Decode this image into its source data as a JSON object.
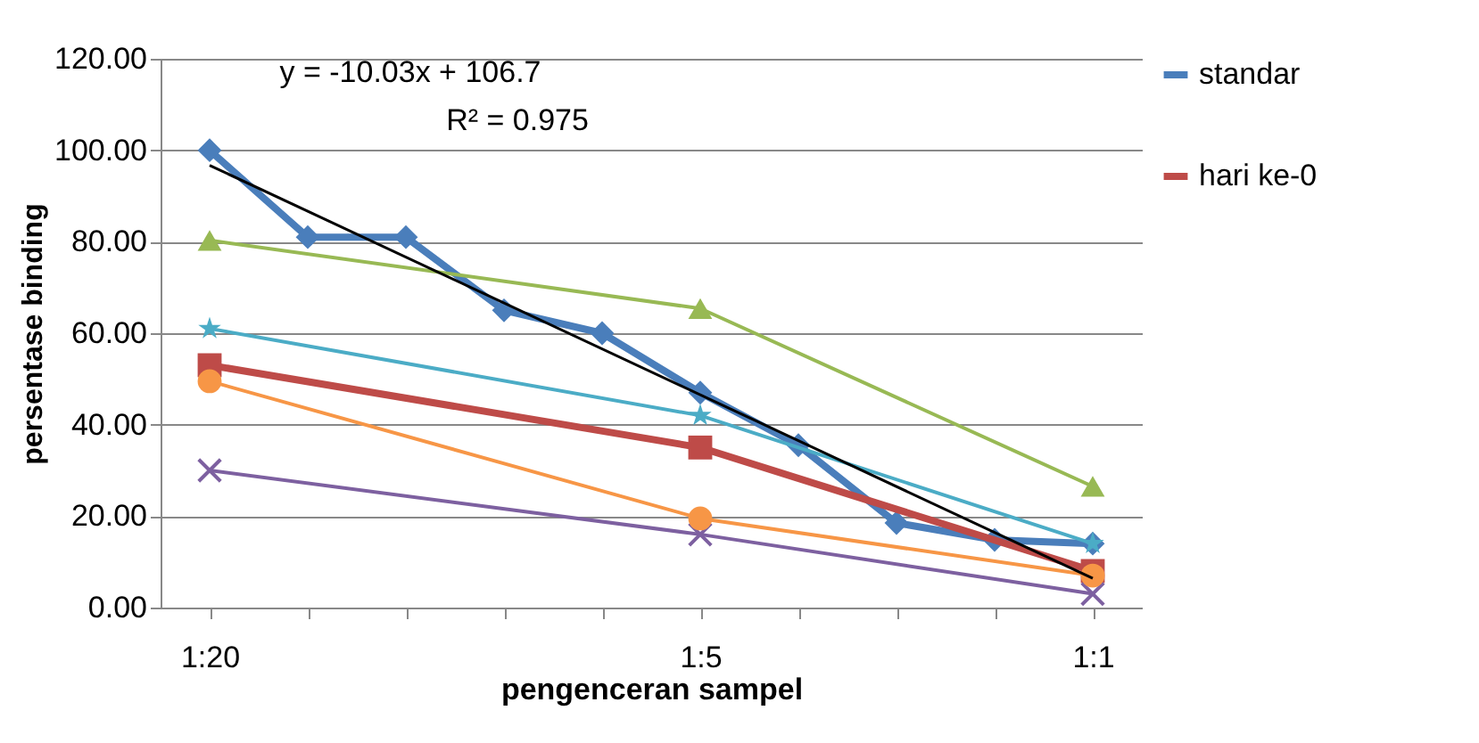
{
  "chart_data": {
    "type": "line",
    "xlabel": "pengenceran sampel",
    "ylabel": "persentase binding",
    "categories": [
      "1:20",
      null,
      null,
      null,
      null,
      "1:5",
      null,
      null,
      null,
      "1:1"
    ],
    "ylim": [
      0,
      120
    ],
    "yticks": [
      {
        "value": 0,
        "label": "0.00"
      },
      {
        "value": 20,
        "label": "20.00"
      },
      {
        "value": 40,
        "label": "40.00"
      },
      {
        "value": 60,
        "label": "60.00"
      },
      {
        "value": 80,
        "label": "80.00"
      },
      {
        "value": 100,
        "label": "100.00"
      },
      {
        "value": 120,
        "label": "120.00"
      }
    ],
    "grid": "y",
    "legend": "right",
    "line_style": "solid",
    "annotations": [
      "y = -10.03x + 106.7",
      "R² = 0.975"
    ],
    "series": [
      {
        "name": "standar",
        "color": "#4a7ebb",
        "marker": "diamond",
        "values": [
          100,
          81,
          81,
          65,
          60,
          47,
          35.5,
          18.5,
          14.8,
          14
        ]
      },
      {
        "name": "hari ke-0",
        "color": "#be4b48",
        "marker": "square",
        "values": [
          53,
          null,
          null,
          null,
          null,
          35,
          null,
          null,
          null,
          8
        ]
      },
      {
        "color": "#98b954",
        "marker": "triangle",
        "values": [
          80.3,
          null,
          null,
          null,
          null,
          65.4,
          null,
          null,
          null,
          26.5
        ]
      },
      {
        "color": "#7d60a0",
        "marker": "cross",
        "values": [
          30,
          null,
          null,
          null,
          null,
          16,
          null,
          null,
          null,
          3
        ]
      },
      {
        "color": "#4bacc6",
        "marker": "star",
        "values": [
          61,
          null,
          null,
          null,
          null,
          42,
          null,
          null,
          null,
          14
        ]
      },
      {
        "color": "#f79646",
        "marker": "circle",
        "values": [
          49.5,
          null,
          null,
          null,
          null,
          19.5,
          null,
          null,
          null,
          7
        ]
      },
      {
        "color": "#000000",
        "marker": "none",
        "values": [
          96.7,
          null,
          null,
          null,
          null,
          null,
          null,
          null,
          null,
          6.4
        ]
      }
    ]
  }
}
